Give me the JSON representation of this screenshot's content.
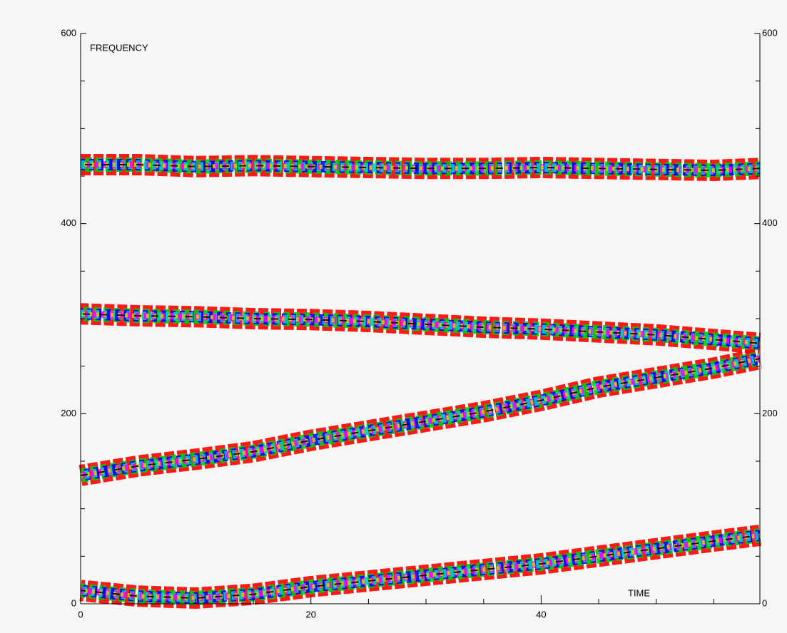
{
  "chart_data": {
    "type": "contour-tracks",
    "y_label": "FREQUENCY",
    "x_label": "TIME",
    "xlim": [
      0,
      59
    ],
    "xticks": [
      0,
      20,
      40
    ],
    "minor_xticks": [
      5,
      10,
      15,
      25,
      30,
      35,
      45,
      50,
      55
    ],
    "ylim": [
      0,
      600
    ],
    "yticks": [
      0,
      200,
      400,
      600
    ],
    "minor_yticks": [
      50,
      100,
      150,
      250,
      300,
      350,
      450,
      500,
      550
    ],
    "contour_colors": [
      "#ff0000",
      "#00cc00",
      "#0000ff",
      "#00cccc",
      "#ff00ff",
      "#cccc00",
      "#000000"
    ],
    "x": [
      0,
      5,
      10,
      15,
      20,
      25,
      30,
      35,
      40,
      45,
      50,
      55,
      59
    ],
    "series": [
      {
        "values": [
          462,
          462,
          460,
          461,
          460,
          459,
          458,
          458,
          459,
          458,
          457,
          456,
          458
        ]
      },
      {
        "values": [
          305,
          303,
          302,
          300,
          299,
          297,
          294,
          291,
          289,
          286,
          283,
          278,
          274
        ]
      },
      {
        "values": [
          135,
          145,
          152,
          160,
          172,
          182,
          192,
          202,
          214,
          228,
          238,
          248,
          258
        ]
      },
      {
        "values": [
          14,
          8,
          6,
          10,
          18,
          24,
          30,
          36,
          42,
          50,
          58,
          66,
          72
        ]
      }
    ]
  }
}
